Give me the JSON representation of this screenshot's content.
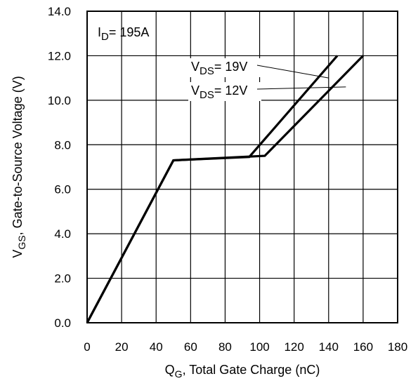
{
  "chart_data": {
    "type": "line",
    "xlabel": {
      "main": "Q",
      "sub": "G",
      "rest": ",  Total Gate Charge (nC)"
    },
    "ylabel": {
      "main": "V",
      "sub": "GS",
      "rest": ", Gate-to-Source Voltage (V)"
    },
    "xlim": [
      0,
      180
    ],
    "ylim": [
      0,
      14
    ],
    "x_ticks": [
      "0",
      "20",
      "40",
      "60",
      "80",
      "100",
      "120",
      "140",
      "160",
      "180"
    ],
    "y_ticks": [
      "0.0",
      "2.0",
      "4.0",
      "6.0",
      "8.0",
      "10.0",
      "12.0",
      "14.0"
    ],
    "grid": true,
    "legend": "none",
    "series": [
      {
        "x": [
          0,
          50,
          94,
          145
        ],
        "y": [
          0,
          7.3,
          7.45,
          12.0
        ]
      },
      {
        "x": [
          0,
          50,
          103,
          160
        ],
        "y": [
          0,
          7.3,
          7.5,
          12.0
        ]
      }
    ],
    "annotations": [
      {
        "main": "I",
        "sub": "D",
        "rest": "= 195A"
      },
      {
        "main": "V",
        "sub": "DS",
        "rest": "= 19V",
        "points_to": [
          140,
          11.0
        ]
      },
      {
        "main": "V",
        "sub": "DS",
        "rest": "= 12V",
        "points_to": [
          150,
          10.6
        ]
      }
    ]
  }
}
